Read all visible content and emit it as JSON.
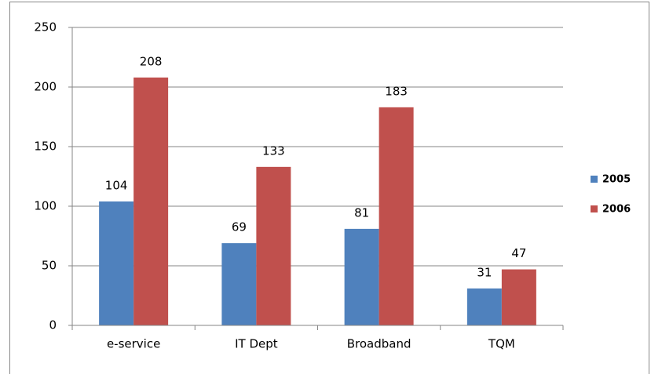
{
  "chart_data": {
    "type": "bar",
    "categories": [
      "e-service",
      "IT Dept",
      "Broadband",
      "TQM"
    ],
    "series": [
      {
        "name": "2005",
        "color": "#4f81bd",
        "values": [
          104,
          69,
          81,
          31
        ]
      },
      {
        "name": "2006",
        "color": "#c0504d",
        "values": [
          208,
          133,
          183,
          47
        ]
      }
    ],
    "ylim": [
      0,
      250
    ],
    "yticks": [
      0,
      50,
      100,
      150,
      200,
      250
    ],
    "grid": true,
    "legend": "right"
  }
}
